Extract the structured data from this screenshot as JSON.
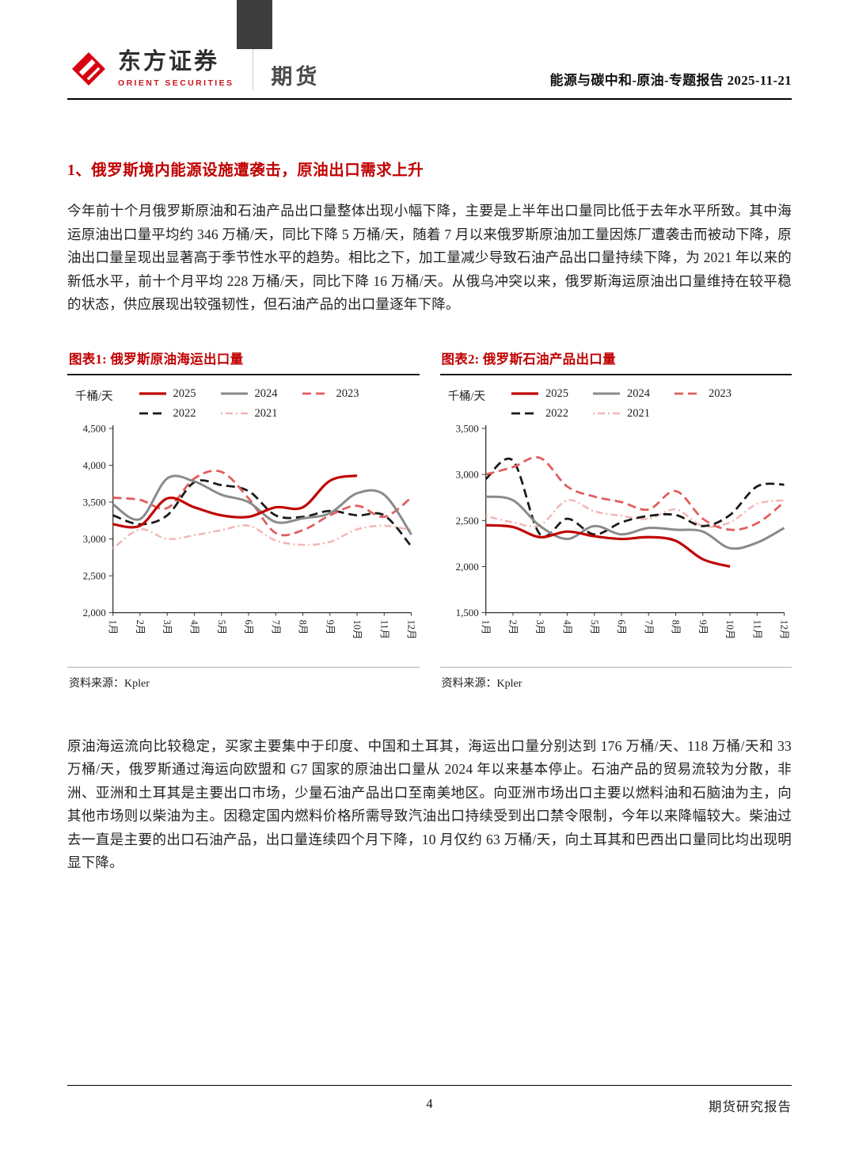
{
  "colors": {
    "accent": "#c00000",
    "brand_red": "#d7000f"
  },
  "icons": {
    "brand_logo": "red-diamond"
  },
  "header": {
    "brand_cn": "东方证券",
    "brand_en": "ORIENT SECURITIES",
    "division": "期货",
    "report_meta": "能源与碳中和-原油-专题报告 2025-11-21"
  },
  "section_heading": "1、俄罗斯境内能源设施遭袭击，原油出口需求上升",
  "paragraphs": {
    "p1": "今年前十个月俄罗斯原油和石油产品出口量整体出现小幅下降，主要是上半年出口量同比低于去年水平所致。其中海运原油出口量平均约 346 万桶/天，同比下降 5 万桶/天，随着 7 月以来俄罗斯原油加工量因炼厂遭袭击而被动下降，原油出口量呈现出显著高于季节性水平的趋势。相比之下，加工量减少导致石油产品出口量持续下降，为 2021 年以来的新低水平，前十个月平均 228 万桶/天，同比下降 16 万桶/天。从俄乌冲突以来，俄罗斯海运原油出口量维持在较平稳的状态，供应展现出较强韧性，但石油产品的出口量逐年下降。",
    "p2": "原油海运流向比较稳定，买家主要集中于印度、中国和土耳其，海运出口量分别达到 176 万桶/天、118 万桶/天和 33 万桶/天，俄罗斯通过海运向欧盟和 G7 国家的原油出口量从 2024 年以来基本停止。石油产品的贸易流较为分散，非洲、亚洲和土耳其是主要出口市场，少量石油产品出口至南美地区。向亚洲市场出口主要以燃料油和石脑油为主，向其他市场则以柴油为主。因稳定国内燃料价格所需导致汽油出口持续受到出口禁令限制，今年以来降幅较大。柴油过去一直是主要的出口石油产品，出口量连续四个月下降，10 月仅约 63 万桶/天，向土耳其和巴西出口量同比均出现明显下降。"
  },
  "chart_data": [
    {
      "type": "line",
      "title": "图表1: 俄罗斯原油海运出口量",
      "xlabel": "",
      "ylabel": "千桶/天",
      "ylim": [
        2000,
        4500
      ],
      "ytick_step": 500,
      "grid": false,
      "legend_position": "top",
      "source": "资料来源：Kpler",
      "categories": [
        "1月",
        "2月",
        "3月",
        "4月",
        "5月",
        "6月",
        "7月",
        "8月",
        "9月",
        "10月",
        "11月",
        "12月"
      ],
      "legend_rows": [
        [
          "2025",
          "2024",
          "2023"
        ],
        [
          "2022",
          "2021"
        ]
      ],
      "series": [
        {
          "name": "2025",
          "color": "#c00000",
          "dash": "",
          "width": 3.2,
          "values": [
            3200,
            3180,
            3550,
            3430,
            3320,
            3300,
            3430,
            3430,
            3790,
            3860
          ]
        },
        {
          "name": "2024",
          "color": "#8a8a8a",
          "dash": "",
          "width": 3,
          "values": [
            3470,
            3270,
            3820,
            3780,
            3600,
            3500,
            3230,
            3280,
            3350,
            3620,
            3600,
            3060
          ]
        },
        {
          "name": "2023",
          "color": "#e25d5d",
          "dash": "11 6",
          "width": 2.8,
          "values": [
            3560,
            3530,
            3420,
            3820,
            3910,
            3550,
            3080,
            3120,
            3320,
            3450,
            3300,
            3560
          ]
        },
        {
          "name": "2022",
          "color": "#1a1a1a",
          "dash": "11 6",
          "width": 2.8,
          "values": [
            3320,
            3200,
            3320,
            3770,
            3730,
            3650,
            3320,
            3300,
            3380,
            3320,
            3320,
            2900
          ]
        },
        {
          "name": "2021",
          "color": "#f2b6b6",
          "dash": "2 4 9 4",
          "width": 2.5,
          "values": [
            2870,
            3130,
            3000,
            3050,
            3120,
            3180,
            2980,
            2920,
            2960,
            3130,
            3180,
            3120
          ]
        }
      ]
    },
    {
      "type": "line",
      "title": "图表2: 俄罗斯石油产品出口量",
      "xlabel": "",
      "ylabel": "千桶/天",
      "ylim": [
        1500,
        3500
      ],
      "ytick_step": 500,
      "grid": false,
      "legend_position": "top",
      "source": "资料来源：Kpler",
      "categories": [
        "1月",
        "2月",
        "3月",
        "4月",
        "5月",
        "6月",
        "7月",
        "8月",
        "9月",
        "10月",
        "11月",
        "12月"
      ],
      "legend_rows": [
        [
          "2025",
          "2024",
          "2023"
        ],
        [
          "2022",
          "2021"
        ]
      ],
      "series": [
        {
          "name": "2025",
          "color": "#c00000",
          "dash": "",
          "width": 3.2,
          "values": [
            2450,
            2430,
            2320,
            2380,
            2330,
            2300,
            2320,
            2280,
            2080,
            2000
          ]
        },
        {
          "name": "2024",
          "color": "#8a8a8a",
          "dash": "",
          "width": 3,
          "values": [
            2760,
            2720,
            2440,
            2300,
            2440,
            2350,
            2420,
            2400,
            2380,
            2200,
            2260,
            2420
          ]
        },
        {
          "name": "2023",
          "color": "#e25d5d",
          "dash": "11 6",
          "width": 2.8,
          "values": [
            3000,
            3080,
            3180,
            2870,
            2760,
            2700,
            2620,
            2820,
            2520,
            2400,
            2470,
            2700
          ]
        },
        {
          "name": "2022",
          "color": "#1a1a1a",
          "dash": "11 6",
          "width": 2.8,
          "values": [
            2950,
            3150,
            2350,
            2520,
            2350,
            2480,
            2550,
            2560,
            2440,
            2560,
            2870,
            2890
          ]
        },
        {
          "name": "2021",
          "color": "#f2b6b6",
          "dash": "2 4 9 4",
          "width": 2.5,
          "values": [
            2550,
            2480,
            2450,
            2720,
            2600,
            2550,
            2520,
            2620,
            2440,
            2480,
            2680,
            2720
          ]
        }
      ]
    }
  ],
  "footer": {
    "page_number": "4",
    "report_label": "期货研究报告"
  }
}
